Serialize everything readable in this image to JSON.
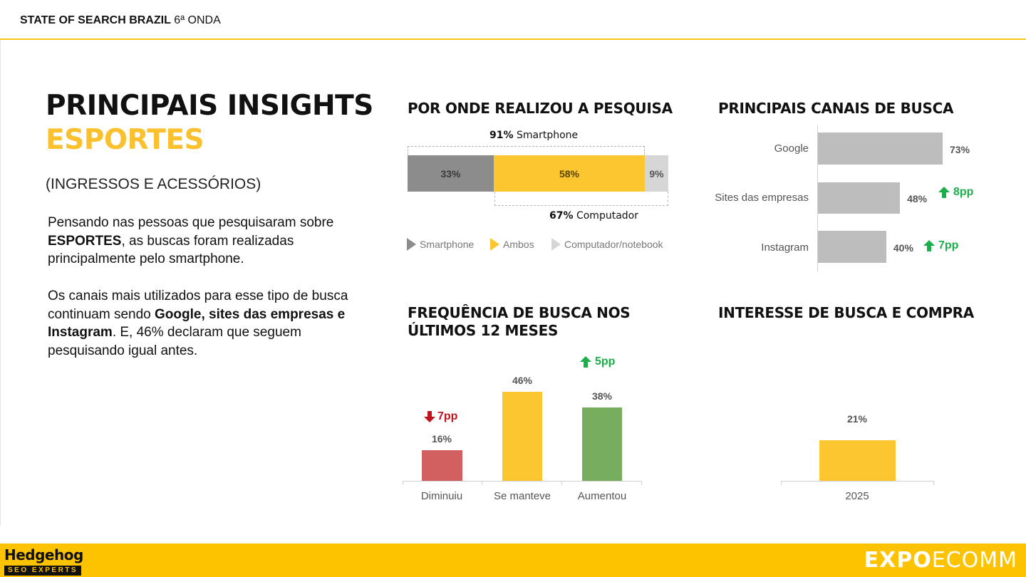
{
  "header": {
    "title_bold": "STATE OF SEARCH BRAZIL",
    "title_rest": " 6ª ONDA"
  },
  "main": {
    "title_line1": "PRINCIPAIS INSIGHTS",
    "title_line2": "ESPORTES",
    "subtitle": "(INGRESSOS E ACESSÓRIOS)",
    "para1": {
      "t1": "Pensando nas pessoas que pesquisaram sobre ",
      "b1": "ESPORTES",
      "t2": ", as buscas foram realizadas principalmente pelo smartphone."
    },
    "para2": {
      "t1": "Os canais mais utilizados para esse tipo de busca continuam sendo ",
      "b1": "Google, sites das empresas e Instagram",
      "t2": ". E, 46% declaram que seguem pesquisando igual antes."
    }
  },
  "device": {
    "title": "POR ONDE REALIZOU A PESQUISA",
    "smartphone_total": "91%",
    "smartphone_total_label": "Smartphone",
    "computer_total": "67%",
    "computer_total_label": "Computador",
    "segments": [
      {
        "label": "33%",
        "value": 33,
        "color": "#8c8c8c",
        "text_color": "#3a3a3a"
      },
      {
        "label": "58%",
        "value": 58,
        "color": "#fbc630",
        "text_color": "#5a4500"
      },
      {
        "label": "9%",
        "value": 9,
        "color": "#d6d6d6",
        "text_color": "#555555"
      }
    ],
    "legend": [
      {
        "label": "Smartphone",
        "color": "#8c8c8c"
      },
      {
        "label": "Ambos",
        "color": "#fbc630"
      },
      {
        "label": "Computador/notebook",
        "color": "#d6d6d6"
      }
    ]
  },
  "channels": {
    "title": "PRINCIPAIS CANAIS DE BUSCA"
  },
  "frequency": {
    "title_line1": "FREQUÊNCIA DE BUSCA NOS",
    "title_line2": "ÚLTIMOS 12 MESES",
    "change_down": "7pp",
    "change_up": "5pp"
  },
  "interest": {
    "title": "INTERESSE DE BUSCA E COMPRA"
  },
  "footer": {
    "brand_name": "Hedgehog",
    "brand_sub": "SEO EXPERTS",
    "expo_bold": "EXPO",
    "expo_light": "ECOMM"
  },
  "chart_data": [
    {
      "type": "bar",
      "orientation": "horizontal",
      "title": "PRINCIPAIS CANAIS DE BUSCA",
      "categories": [
        "Google",
        "Sites das empresas",
        "Instagram"
      ],
      "values": [
        73,
        48,
        40
      ],
      "value_labels": [
        "73%",
        "48%",
        "40%"
      ],
      "annotations": [
        {
          "category": "Sites das empresas",
          "text": "8pp",
          "direction": "up"
        },
        {
          "category": "Instagram",
          "text": "7pp",
          "direction": "up"
        }
      ],
      "xlim": [
        0,
        73
      ],
      "color": "#bdbdbd"
    },
    {
      "type": "bar",
      "title": "FREQUÊNCIA DE BUSCA NOS ÚLTIMOS 12 MESES",
      "categories": [
        "Diminuiu",
        "Se manteve",
        "Aumentou"
      ],
      "values": [
        16,
        46,
        38
      ],
      "value_labels": [
        "16%",
        "46%",
        "38%"
      ],
      "colors": [
        "#d26060",
        "#fbc630",
        "#77ad5f"
      ],
      "ylim": [
        0,
        46
      ]
    },
    {
      "type": "bar",
      "title": "INTERESSE DE BUSCA E COMPRA",
      "categories": [
        "2025"
      ],
      "values": [
        21
      ],
      "value_labels": [
        "21%"
      ],
      "colors": [
        "#fbc630"
      ],
      "ylim": [
        0,
        46
      ]
    }
  ]
}
